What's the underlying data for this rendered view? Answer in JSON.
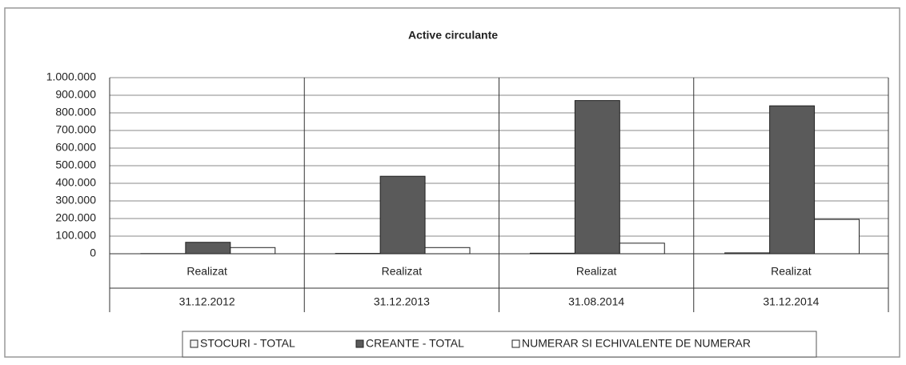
{
  "chart_data": {
    "type": "bar",
    "title": "Active circulante",
    "categories": [
      [
        "Realizat",
        "31.12.2012"
      ],
      [
        "Realizat",
        "31.12.2013"
      ],
      [
        "Realizat",
        "31.08.2014"
      ],
      [
        "Realizat",
        "31.12.2014"
      ]
    ],
    "series": [
      {
        "name": "STOCURI - TOTAL",
        "color": "#f4f4f4",
        "values": [
          1000,
          2000,
          3000,
          5000
        ]
      },
      {
        "name": "CREANTE - TOTAL",
        "color": "#5a5a5a",
        "values": [
          65000,
          440000,
          870000,
          840000
        ]
      },
      {
        "name": "NUMERAR SI ECHIVALENTE DE NUMERAR",
        "color": "#ffffff",
        "values": [
          35000,
          35000,
          60000,
          195000
        ]
      }
    ],
    "ylim": [
      0,
      1000000
    ],
    "yticks": [
      0,
      {
        "value": 100000,
        "label": "100.000"
      },
      {
        "value": 200000,
        "label": "200.000"
      },
      {
        "value": 300000,
        "label": "300.000"
      },
      {
        "value": 400000,
        "label": "400.000"
      },
      {
        "value": 500000,
        "label": "500.000"
      },
      {
        "value": 600000,
        "label": "600.000"
      },
      {
        "value": 700000,
        "label": "700.000"
      },
      {
        "value": 800000,
        "label": "800.000"
      },
      {
        "value": 900000,
        "label": "900.000"
      },
      {
        "value": 1000000,
        "label": "1.000.000"
      }
    ],
    "grid": true,
    "legend": "bottom"
  }
}
